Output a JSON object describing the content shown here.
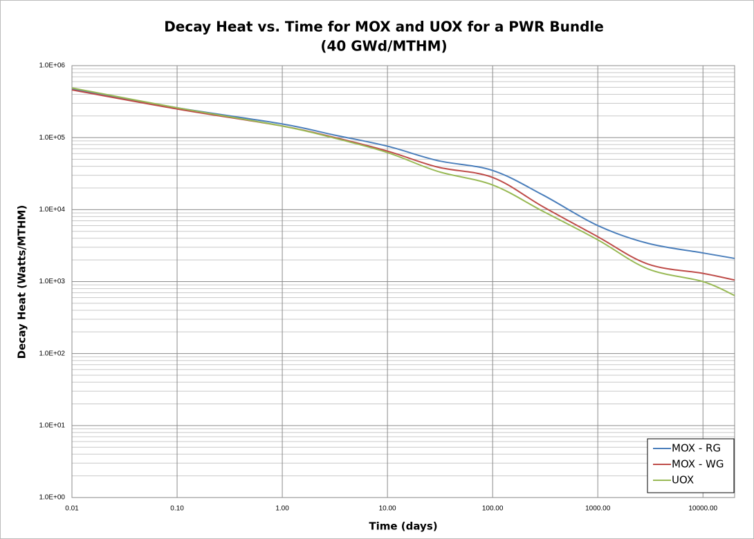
{
  "chart_data": {
    "type": "line",
    "title": [
      "Decay Heat vs. Time for MOX and UOX for a PWR Bundle",
      "(40 GWd/MTHM)"
    ],
    "x_label": "Time (days)",
    "y_label": "Decay Heat (Watts/MTHM)",
    "x": [
      0.01,
      0.1,
      1,
      3,
      10,
      30,
      100,
      300,
      1000,
      3000,
      10000,
      20000
    ],
    "series": [
      {
        "name": "MOX - RG",
        "color": "#4a7ebb",
        "values": [
          470000,
          260000,
          155000,
          110000,
          76000,
          48000,
          35000,
          16000,
          6000,
          3400,
          2500,
          2100
        ]
      },
      {
        "name": "MOX - WG",
        "color": "#be4b48",
        "values": [
          460000,
          250000,
          145000,
          102000,
          65000,
          39000,
          28000,
          11000,
          4200,
          1750,
          1300,
          1050
        ]
      },
      {
        "name": "UOX",
        "color": "#98b954",
        "values": [
          490000,
          260000,
          145000,
          100000,
          62000,
          34000,
          22000,
          9500,
          3800,
          1500,
          1000,
          640
        ]
      }
    ],
    "xscale": "log",
    "yscale": "log",
    "xlim": [
      0.01,
      20000
    ],
    "ylim": [
      1,
      1000000
    ],
    "xticks": [
      0.01,
      {
        "value": 0.1,
        "label": "0.10"
      },
      {
        "value": 1,
        "label": "1.00"
      },
      {
        "value": 10,
        "label": "10.00"
      },
      {
        "value": 100,
        "label": "100.00"
      },
      {
        "value": 1000,
        "label": "1000.00"
      },
      {
        "value": 10000,
        "label": "10000.00"
      }
    ],
    "yticks": [
      {
        "value": 1,
        "label": "1.0E+00"
      },
      {
        "value": 10,
        "label": "1.0E+01"
      },
      {
        "value": 100,
        "label": "1.0E+02"
      },
      {
        "value": 1000,
        "label": "1.0E+03"
      },
      {
        "value": 10000,
        "label": "1.0E+04"
      },
      {
        "value": 100000,
        "label": "1.0E+05"
      },
      {
        "value": 1000000,
        "label": "1.0E+06"
      }
    ],
    "grid": true,
    "minor_grid_y": true,
    "legend": "lower right"
  }
}
